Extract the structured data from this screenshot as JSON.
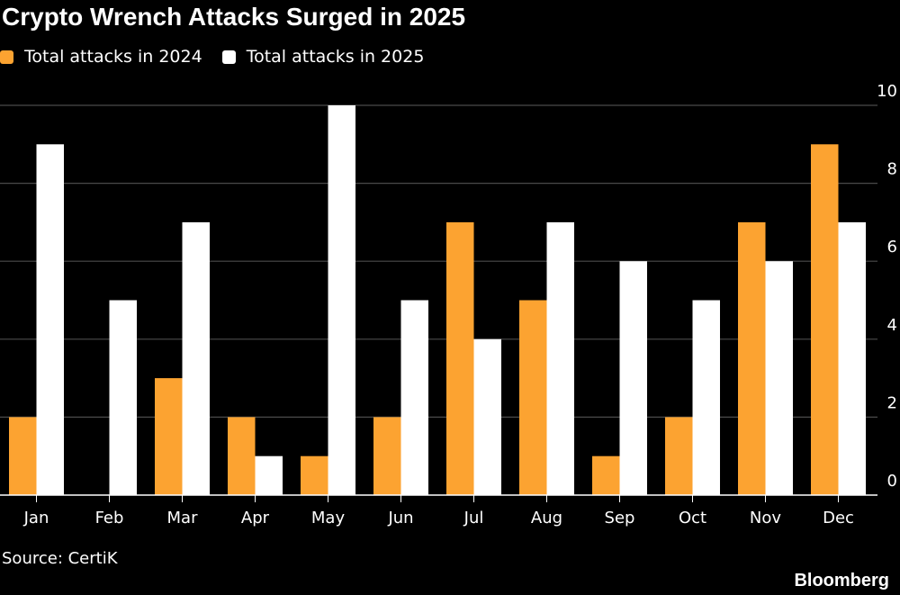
{
  "chart_data": {
    "type": "bar",
    "title": "Crypto Wrench Attacks Surged in 2025",
    "categories": [
      "Jan",
      "Feb",
      "Mar",
      "Apr",
      "May",
      "Jun",
      "Jul",
      "Aug",
      "Sep",
      "Oct",
      "Nov",
      "Dec"
    ],
    "series": [
      {
        "name": "Total attacks in 2024",
        "color": "#FCA331",
        "values": [
          2,
          0,
          3,
          2,
          1,
          2,
          7,
          5,
          1,
          2,
          7,
          9
        ]
      },
      {
        "name": "Total attacks in 2025",
        "color": "#FFFFFF",
        "values": [
          9,
          5,
          7,
          1,
          10,
          5,
          4,
          7,
          6,
          5,
          6,
          7
        ]
      }
    ],
    "ylim": [
      0,
      10
    ],
    "yticks": [
      0,
      2,
      4,
      6,
      8,
      10
    ],
    "y_axis_side": "right",
    "grid": true,
    "legend_position": "top-left",
    "source": "Source: CertiK",
    "brand": "Bloomberg"
  }
}
